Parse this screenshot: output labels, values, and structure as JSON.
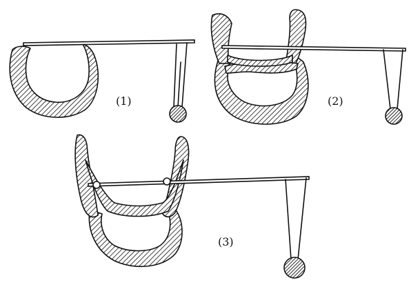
{
  "figure": {
    "panels": [
      {
        "id": "1",
        "label": "(1)"
      },
      {
        "id": "2",
        "label": "(2)"
      },
      {
        "id": "3",
        "label": "(3)"
      }
    ]
  }
}
